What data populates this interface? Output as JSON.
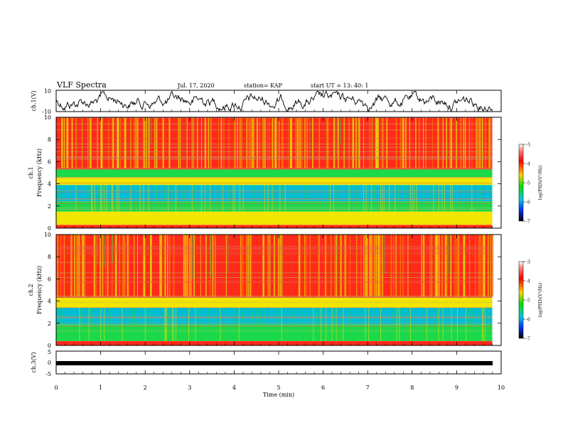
{
  "header": {
    "title": "VLF Spectra",
    "date": "Jul. 17, 2020",
    "station": "station= KAP",
    "start_time": "start UT =   13: 40: 1"
  },
  "chart_data": [
    {
      "type": "line",
      "panel": "ch1-waveform",
      "ylabel": "ch.1(V)",
      "ylim": [
        -10,
        10
      ],
      "y_ticks": [
        "10",
        "-10"
      ],
      "xlim": [
        0,
        10
      ],
      "note_data": "noisy time series of ch.1 voltage"
    },
    {
      "type": "heatmap",
      "panel": "ch1-spectrogram",
      "ylabel": "ch.1\nFrequency (kHz)",
      "ylabel_lines": [
        "ch.1",
        "Frequency (kHz)"
      ],
      "ylim": [
        0,
        10
      ],
      "y_ticks": [
        "0",
        "2",
        "4",
        "6",
        "8",
        "10"
      ],
      "xlim": [
        0,
        10
      ],
      "colorbar": {
        "label": "log(PSD)(V²/Hz)",
        "min": -7,
        "max": -3,
        "ticks": [
          "-3",
          "-4",
          "-5",
          "-6",
          "-7"
        ]
      }
    },
    {
      "type": "heatmap",
      "panel": "ch2-spectrogram",
      "ylabel_lines": [
        "ch.2",
        "Frequency (kHz)"
      ],
      "ylim": [
        0,
        10
      ],
      "y_ticks": [
        "0",
        "2",
        "4",
        "6",
        "8",
        "10"
      ],
      "xlim": [
        0,
        10
      ],
      "colorbar": {
        "label": "log(PSD)(V²/Hz)",
        "min": -7,
        "max": -3,
        "ticks": [
          "-3",
          "-4",
          "-5",
          "-6",
          "-7"
        ]
      }
    },
    {
      "type": "line",
      "panel": "ch3-waveform",
      "ylabel": "ch.3(V)",
      "ylim": [
        -5,
        5
      ],
      "y_ticks": [
        "5",
        "0",
        "-5"
      ],
      "xlim": [
        0,
        10
      ],
      "note_data": "flat band around -1 V"
    }
  ],
  "xaxis": {
    "label": "Time (min)",
    "ticks": [
      "0",
      "1",
      "2",
      "3",
      "4",
      "5",
      "6",
      "7",
      "8",
      "9",
      "10"
    ],
    "data_end": 9.8
  },
  "colors": {
    "spec_high": "#ff2a1a",
    "spec_mid": "#f2e600",
    "spec_low": "#1ad94a",
    "spec_lowest": "#00bcd4",
    "line": "#000000"
  }
}
